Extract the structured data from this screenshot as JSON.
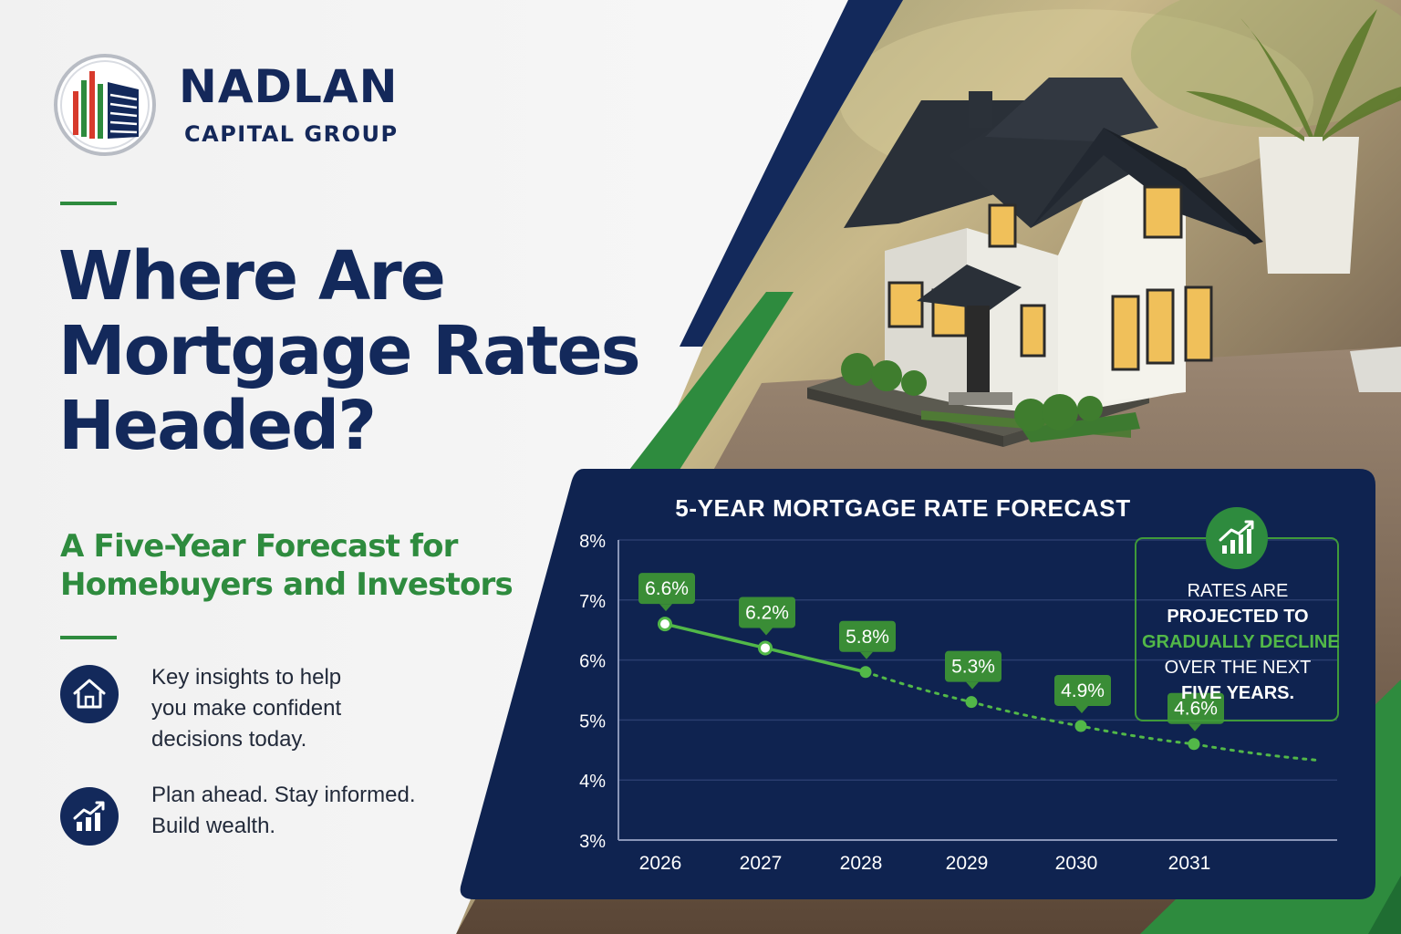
{
  "brand": {
    "name": "NADLAN",
    "tagline": "CAPITAL GROUP"
  },
  "headline": {
    "line1": "Where Are",
    "line2": "Mortgage Rates",
    "line3": "Headed?"
  },
  "subheadline": {
    "line1": "A Five-Year Forecast for",
    "line2": "Homebuyers and Investors"
  },
  "features": [
    {
      "icon": "house-icon",
      "lines": [
        "Key insights to help",
        "you make confident",
        "decisions today."
      ]
    },
    {
      "icon": "growth-chart-icon",
      "lines": [
        "Plan ahead. Stay informed.",
        "Build wealth."
      ]
    }
  ],
  "callout": {
    "icon": "growth-chart-icon",
    "line1": "RATES ARE",
    "line2": "PROJECTED TO",
    "line3": "GRADUALLY DECLINE",
    "line4": "OVER THE NEXT",
    "line5": "FIVE YEARS."
  },
  "colors": {
    "navy": "#13295b",
    "green": "#2e8b3e",
    "light_green": "#52b848",
    "panel": "#0f2350"
  },
  "chart_data": {
    "type": "line",
    "title": "5-YEAR MORTGAGE RATE FORECAST",
    "xlabel": "",
    "ylabel": "",
    "categories": [
      "2026",
      "2027",
      "2028",
      "2029",
      "2030",
      "2031"
    ],
    "values": [
      6.6,
      6.2,
      5.8,
      5.3,
      4.9,
      4.6
    ],
    "data_labels": [
      "6.6%",
      "6.2%",
      "5.8%",
      "5.3%",
      "4.9%",
      "4.6%"
    ],
    "yticks": [
      "8%",
      "7%",
      "6%",
      "5%",
      "4%",
      "3%"
    ],
    "ytick_values": [
      8,
      7,
      6,
      5,
      4,
      3
    ],
    "ylim": [
      3,
      8
    ],
    "solid_through": "2028",
    "projected_style": "dotted",
    "trend_continues_past": "2031",
    "grid": true,
    "line_color": "#52b848"
  }
}
